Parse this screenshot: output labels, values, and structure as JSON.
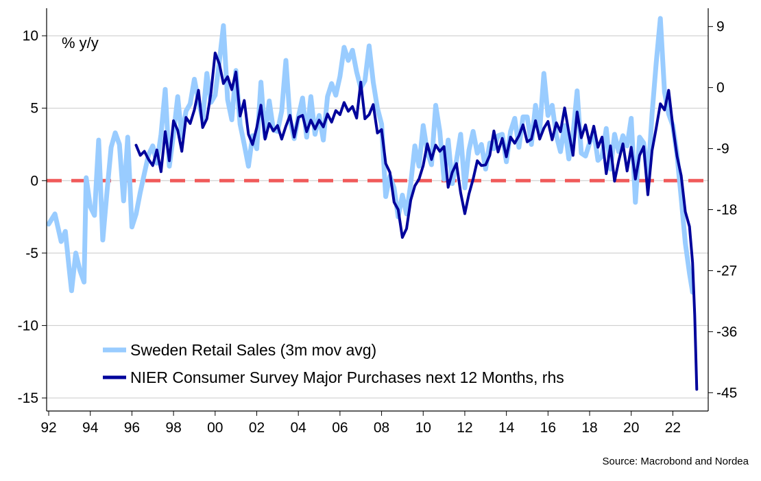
{
  "chart_data": {
    "type": "line",
    "unit_label": "% y/y",
    "source": "Source: Macrobond and Nordea",
    "x_ticks": [
      "92",
      "94",
      "96",
      "98",
      "00",
      "02",
      "04",
      "06",
      "08",
      "10",
      "12",
      "14",
      "16",
      "18",
      "20",
      "22"
    ],
    "x_range": [
      1991.9,
      2023.7
    ],
    "y_left": {
      "range": [
        -15.9,
        11.9
      ],
      "ticks": [
        10,
        5,
        0,
        -5,
        -10,
        -15
      ]
    },
    "y_right": {
      "range": [
        -47.7,
        11.7
      ],
      "ticks": [
        9,
        0,
        -9,
        -18,
        -27,
        -36,
        -45
      ]
    },
    "zero_line": {
      "value": 0,
      "color": "#f05a5a"
    },
    "grid": true,
    "legend_position": "bottom-left",
    "series": [
      {
        "name": "Sweden Retail Sales (3m mov avg)",
        "axis": "left",
        "color": "#99ccff",
        "points": [
          [
            1992.0,
            -3.0
          ],
          [
            1992.3,
            -2.3
          ],
          [
            1992.6,
            -4.2
          ],
          [
            1992.8,
            -3.5
          ],
          [
            1993.0,
            -6.3
          ],
          [
            1993.1,
            -7.6
          ],
          [
            1993.3,
            -5.0
          ],
          [
            1993.5,
            -6.2
          ],
          [
            1993.7,
            -7.0
          ],
          [
            1993.8,
            0.2
          ],
          [
            1994.0,
            -1.8
          ],
          [
            1994.2,
            -2.4
          ],
          [
            1994.4,
            2.8
          ],
          [
            1994.6,
            -4.1
          ],
          [
            1994.8,
            -0.8
          ],
          [
            1995.0,
            2.3
          ],
          [
            1995.2,
            3.3
          ],
          [
            1995.4,
            2.5
          ],
          [
            1995.6,
            -1.4
          ],
          [
            1995.8,
            3.0
          ],
          [
            1996.0,
            -3.2
          ],
          [
            1996.2,
            -2.3
          ],
          [
            1996.4,
            -0.8
          ],
          [
            1996.6,
            0.5
          ],
          [
            1996.8,
            1.8
          ],
          [
            1997.0,
            2.4
          ],
          [
            1997.2,
            1.2
          ],
          [
            1997.4,
            3.2
          ],
          [
            1997.6,
            6.3
          ],
          [
            1997.8,
            1.0
          ],
          [
            1998.0,
            3.2
          ],
          [
            1998.2,
            5.8
          ],
          [
            1998.4,
            3.0
          ],
          [
            1998.6,
            4.8
          ],
          [
            1998.8,
            5.3
          ],
          [
            1999.0,
            7.0
          ],
          [
            1999.2,
            5.5
          ],
          [
            1999.4,
            4.2
          ],
          [
            1999.6,
            7.4
          ],
          [
            1999.8,
            5.4
          ],
          [
            2000.0,
            5.9
          ],
          [
            2000.2,
            8.2
          ],
          [
            2000.4,
            10.7
          ],
          [
            2000.6,
            5.6
          ],
          [
            2000.8,
            4.2
          ],
          [
            2001.0,
            7.6
          ],
          [
            2001.2,
            3.9
          ],
          [
            2001.4,
            2.5
          ],
          [
            2001.6,
            1.0
          ],
          [
            2001.8,
            3.1
          ],
          [
            2002.0,
            2.2
          ],
          [
            2002.2,
            6.8
          ],
          [
            2002.4,
            3.0
          ],
          [
            2002.6,
            5.5
          ],
          [
            2002.8,
            3.5
          ],
          [
            2003.0,
            3.4
          ],
          [
            2003.2,
            4.8
          ],
          [
            2003.4,
            8.3
          ],
          [
            2003.6,
            4.2
          ],
          [
            2003.8,
            2.9
          ],
          [
            2004.0,
            4.4
          ],
          [
            2004.2,
            5.7
          ],
          [
            2004.4,
            3.0
          ],
          [
            2004.6,
            5.8
          ],
          [
            2004.8,
            3.2
          ],
          [
            2005.0,
            4.5
          ],
          [
            2005.2,
            2.8
          ],
          [
            2005.4,
            5.8
          ],
          [
            2005.6,
            6.7
          ],
          [
            2005.8,
            5.9
          ],
          [
            2006.0,
            7.2
          ],
          [
            2006.2,
            9.2
          ],
          [
            2006.4,
            8.3
          ],
          [
            2006.6,
            9.0
          ],
          [
            2006.8,
            7.5
          ],
          [
            2007.0,
            6.4
          ],
          [
            2007.2,
            6.9
          ],
          [
            2007.4,
            9.3
          ],
          [
            2007.6,
            6.8
          ],
          [
            2007.8,
            5.0
          ],
          [
            2008.0,
            3.9
          ],
          [
            2008.2,
            -1.1
          ],
          [
            2008.4,
            0.3
          ],
          [
            2008.6,
            -0.5
          ],
          [
            2008.8,
            -2.5
          ],
          [
            2009.0,
            -1.0
          ],
          [
            2009.2,
            -2.3
          ],
          [
            2009.4,
            -0.2
          ],
          [
            2009.6,
            2.4
          ],
          [
            2009.8,
            1.0
          ],
          [
            2010.0,
            3.8
          ],
          [
            2010.2,
            2.0
          ],
          [
            2010.4,
            1.1
          ],
          [
            2010.6,
            5.2
          ],
          [
            2010.8,
            3.4
          ],
          [
            2011.0,
            0.1
          ],
          [
            2011.2,
            2.8
          ],
          [
            2011.4,
            -0.2
          ],
          [
            2011.6,
            1.4
          ],
          [
            2011.8,
            3.2
          ],
          [
            2012.0,
            -0.5
          ],
          [
            2012.2,
            2.1
          ],
          [
            2012.4,
            3.4
          ],
          [
            2012.6,
            1.9
          ],
          [
            2012.8,
            2.5
          ],
          [
            2013.0,
            0.8
          ],
          [
            2013.2,
            2.6
          ],
          [
            2013.4,
            2.2
          ],
          [
            2013.6,
            3.1
          ],
          [
            2013.8,
            3.2
          ],
          [
            2014.0,
            1.3
          ],
          [
            2014.2,
            3.4
          ],
          [
            2014.4,
            4.3
          ],
          [
            2014.6,
            2.3
          ],
          [
            2014.8,
            4.4
          ],
          [
            2015.0,
            4.4
          ],
          [
            2015.2,
            2.5
          ],
          [
            2015.4,
            5.2
          ],
          [
            2015.6,
            3.4
          ],
          [
            2015.8,
            7.4
          ],
          [
            2016.0,
            4.5
          ],
          [
            2016.2,
            5.2
          ],
          [
            2016.4,
            3.1
          ],
          [
            2016.6,
            2.0
          ],
          [
            2016.8,
            3.8
          ],
          [
            2017.0,
            1.5
          ],
          [
            2017.2,
            3.2
          ],
          [
            2017.4,
            6.2
          ],
          [
            2017.6,
            1.9
          ],
          [
            2017.8,
            1.7
          ],
          [
            2018.0,
            2.6
          ],
          [
            2018.2,
            3.4
          ],
          [
            2018.4,
            1.4
          ],
          [
            2018.6,
            1.7
          ],
          [
            2018.8,
            3.6
          ],
          [
            2019.0,
            0.8
          ],
          [
            2019.2,
            3.2
          ],
          [
            2019.4,
            2.0
          ],
          [
            2019.6,
            3.1
          ],
          [
            2019.8,
            2.4
          ],
          [
            2020.0,
            4.3
          ],
          [
            2020.2,
            -1.5
          ],
          [
            2020.4,
            3.0
          ],
          [
            2020.6,
            2.6
          ],
          [
            2020.8,
            0.1
          ],
          [
            2021.0,
            4.6
          ],
          [
            2021.2,
            8.1
          ],
          [
            2021.4,
            11.2
          ],
          [
            2021.6,
            6.1
          ],
          [
            2021.8,
            4.6
          ],
          [
            2022.0,
            3.8
          ],
          [
            2022.2,
            1.8
          ],
          [
            2022.4,
            -1.2
          ],
          [
            2022.6,
            -4.3
          ],
          [
            2022.8,
            -6.4
          ],
          [
            2022.95,
            -7.7
          ]
        ]
      },
      {
        "name": "NIER Consumer Survey Major Purchases next 12 Months, rhs",
        "axis": "right",
        "color": "#00039b",
        "points": [
          [
            1996.2,
            -8.5
          ],
          [
            1996.4,
            -10.0
          ],
          [
            1996.6,
            -9.4
          ],
          [
            1996.8,
            -10.6
          ],
          [
            1997.0,
            -11.5
          ],
          [
            1997.2,
            -9.2
          ],
          [
            1997.4,
            -12.4
          ],
          [
            1997.6,
            -6.5
          ],
          [
            1997.8,
            -10.8
          ],
          [
            1998.0,
            -4.9
          ],
          [
            1998.2,
            -6.3
          ],
          [
            1998.4,
            -9.4
          ],
          [
            1998.6,
            -4.4
          ],
          [
            1998.8,
            -5.3
          ],
          [
            1999.0,
            -3.3
          ],
          [
            1999.2,
            -0.4
          ],
          [
            1999.4,
            -5.9
          ],
          [
            1999.6,
            -4.6
          ],
          [
            1999.8,
            -0.8
          ],
          [
            2000.0,
            5.1
          ],
          [
            2000.2,
            3.5
          ],
          [
            2000.4,
            0.6
          ],
          [
            2000.6,
            1.6
          ],
          [
            2000.8,
            -0.3
          ],
          [
            2001.0,
            2.3
          ],
          [
            2001.2,
            -4.2
          ],
          [
            2001.4,
            -1.9
          ],
          [
            2001.6,
            -6.9
          ],
          [
            2001.8,
            -8.4
          ],
          [
            2002.0,
            -5.9
          ],
          [
            2002.2,
            -2.6
          ],
          [
            2002.4,
            -7.6
          ],
          [
            2002.6,
            -5.3
          ],
          [
            2002.8,
            -6.4
          ],
          [
            2003.0,
            -5.6
          ],
          [
            2003.2,
            -7.6
          ],
          [
            2003.4,
            -5.7
          ],
          [
            2003.6,
            -4.1
          ],
          [
            2003.8,
            -7.3
          ],
          [
            2004.0,
            -4.4
          ],
          [
            2004.2,
            -4.1
          ],
          [
            2004.4,
            -6.5
          ],
          [
            2004.6,
            -4.8
          ],
          [
            2004.8,
            -6.1
          ],
          [
            2005.0,
            -4.8
          ],
          [
            2005.2,
            -5.8
          ],
          [
            2005.4,
            -3.9
          ],
          [
            2005.6,
            -5.1
          ],
          [
            2005.8,
            -3.4
          ],
          [
            2006.0,
            -4.0
          ],
          [
            2006.2,
            -2.2
          ],
          [
            2006.4,
            -3.5
          ],
          [
            2006.6,
            -2.8
          ],
          [
            2006.8,
            -4.5
          ],
          [
            2007.0,
            0.8
          ],
          [
            2007.2,
            -4.6
          ],
          [
            2007.4,
            -4.0
          ],
          [
            2007.6,
            -2.5
          ],
          [
            2007.8,
            -6.7
          ],
          [
            2008.0,
            -6.2
          ],
          [
            2008.2,
            -11.2
          ],
          [
            2008.4,
            -12.5
          ],
          [
            2008.6,
            -16.9
          ],
          [
            2008.8,
            -18.0
          ],
          [
            2009.0,
            -22.1
          ],
          [
            2009.2,
            -20.8
          ],
          [
            2009.4,
            -16.6
          ],
          [
            2009.6,
            -14.5
          ],
          [
            2009.8,
            -13.5
          ],
          [
            2010.0,
            -11.5
          ],
          [
            2010.2,
            -8.3
          ],
          [
            2010.4,
            -10.6
          ],
          [
            2010.6,
            -8.5
          ],
          [
            2010.8,
            -9.4
          ],
          [
            2011.0,
            -8.7
          ],
          [
            2011.2,
            -14.7
          ],
          [
            2011.4,
            -12.5
          ],
          [
            2011.6,
            -11.2
          ],
          [
            2011.8,
            -15.5
          ],
          [
            2012.0,
            -18.6
          ],
          [
            2012.2,
            -15.7
          ],
          [
            2012.4,
            -13.5
          ],
          [
            2012.6,
            -10.8
          ],
          [
            2012.8,
            -11.5
          ],
          [
            2013.0,
            -11.4
          ],
          [
            2013.2,
            -10.0
          ],
          [
            2013.4,
            -6.4
          ],
          [
            2013.6,
            -9.5
          ],
          [
            2013.8,
            -7.5
          ],
          [
            2014.0,
            -10.2
          ],
          [
            2014.2,
            -7.3
          ],
          [
            2014.4,
            -8.2
          ],
          [
            2014.6,
            -7.1
          ],
          [
            2014.8,
            -5.5
          ],
          [
            2015.0,
            -8.0
          ],
          [
            2015.2,
            -7.6
          ],
          [
            2015.4,
            -4.9
          ],
          [
            2015.6,
            -7.6
          ],
          [
            2015.8,
            -6.0
          ],
          [
            2016.0,
            -5.0
          ],
          [
            2016.2,
            -7.7
          ],
          [
            2016.4,
            -5.2
          ],
          [
            2016.6,
            -6.5
          ],
          [
            2016.8,
            -3.0
          ],
          [
            2017.0,
            -6.6
          ],
          [
            2017.2,
            -10.0
          ],
          [
            2017.4,
            -3.6
          ],
          [
            2017.6,
            -7.4
          ],
          [
            2017.8,
            -5.5
          ],
          [
            2018.0,
            -8.2
          ],
          [
            2018.2,
            -5.7
          ],
          [
            2018.4,
            -8.8
          ],
          [
            2018.6,
            -7.3
          ],
          [
            2018.8,
            -12.7
          ],
          [
            2019.0,
            -8.6
          ],
          [
            2019.2,
            -13.8
          ],
          [
            2019.4,
            -10.8
          ],
          [
            2019.6,
            -8.3
          ],
          [
            2019.8,
            -12.3
          ],
          [
            2020.0,
            -8.8
          ],
          [
            2020.2,
            -13.5
          ],
          [
            2020.4,
            -10.0
          ],
          [
            2020.6,
            -8.7
          ],
          [
            2020.8,
            -15.8
          ],
          [
            2021.0,
            -9.3
          ],
          [
            2021.2,
            -6.0
          ],
          [
            2021.4,
            -2.4
          ],
          [
            2021.6,
            -3.3
          ],
          [
            2021.8,
            -0.4
          ],
          [
            2022.0,
            -5.7
          ],
          [
            2022.2,
            -10.1
          ],
          [
            2022.4,
            -13.0
          ],
          [
            2022.6,
            -18.3
          ],
          [
            2022.8,
            -20.5
          ],
          [
            2022.95,
            -25.8
          ],
          [
            2023.05,
            -33.5
          ],
          [
            2023.15,
            -44.5
          ]
        ]
      }
    ]
  }
}
